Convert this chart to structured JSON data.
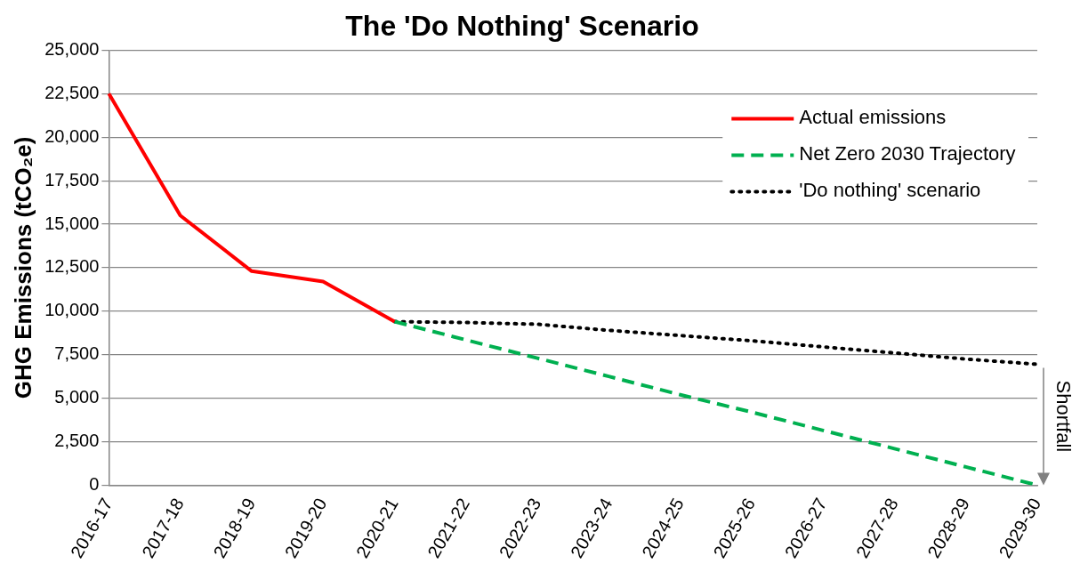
{
  "chart_data": {
    "type": "line",
    "title": "The 'Do Nothing' Scenario",
    "ylabel": "GHG Emissions (tCO₂e)",
    "categories": [
      "2016-17",
      "2017-18",
      "2018-19",
      "2019-20",
      "2020-21",
      "2021-22",
      "2022-23",
      "2023-24",
      "2024-25",
      "2025-26",
      "2026-27",
      "2027-28",
      "2028-29",
      "2029-30"
    ],
    "series": [
      {
        "name": "Actual emissions",
        "color": "#ff0000",
        "line_style": "solid",
        "values": [
          22500,
          15500,
          12300,
          11700,
          9400,
          null,
          null,
          null,
          null,
          null,
          null,
          null,
          null,
          null
        ]
      },
      {
        "name": "Net Zero 2030 Trajectory",
        "color": "#00b050",
        "line_style": "dashed",
        "values": [
          null,
          null,
          null,
          null,
          9400,
          8350,
          7300,
          6250,
          5200,
          4200,
          3150,
          2100,
          1050,
          0
        ]
      },
      {
        "name": "'Do nothing' scenario",
        "color": "#000000",
        "line_style": "dotted",
        "values": [
          null,
          null,
          null,
          null,
          9400,
          9350,
          9250,
          8900,
          8600,
          8300,
          7950,
          7600,
          7250,
          6950
        ]
      }
    ],
    "ylim": [
      0,
      25000
    ],
    "yticks": [
      0,
      {
        "value": 2500,
        "label": "2,500"
      },
      {
        "value": 5000,
        "label": "5,000"
      },
      {
        "value": 7500,
        "label": "7,500"
      },
      {
        "value": 10000,
        "label": "10,000"
      },
      {
        "value": 12500,
        "label": "12,500"
      },
      {
        "value": 15000,
        "label": "15,000"
      },
      {
        "value": 17500,
        "label": "17,500"
      },
      {
        "value": 20000,
        "label": "20,000"
      },
      {
        "value": 22500,
        "label": "22,500"
      },
      {
        "value": 25000,
        "label": "25,000"
      }
    ],
    "grid": "y",
    "legend": "top right",
    "marker": "none",
    "annotations": [
      "Shortfall"
    ]
  }
}
